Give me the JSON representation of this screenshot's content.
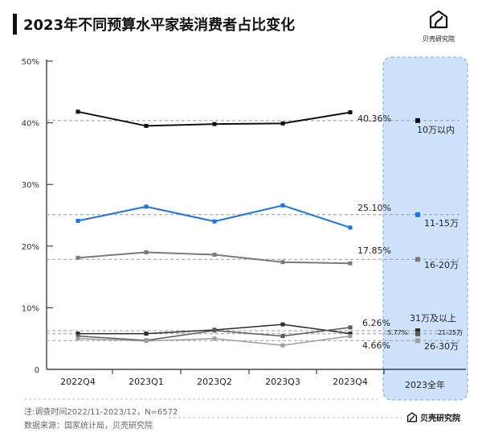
{
  "header": {
    "title": "2023年不同预算水平家装消费者占比变化",
    "brand": "贝壳研究院"
  },
  "footer": {
    "note": "注:调查时间2022/11-2023/12，N=6572",
    "source": "数据来源：国家统计局，贝壳研究院"
  },
  "colors": {
    "black": "#111111",
    "blue": "#1a73e8",
    "gray": "#7a7a7a",
    "dark": "#2b2b2b",
    "light": "#9e9e9e",
    "mid": "#5a5a5a",
    "highlight": "#cfe2fb"
  },
  "chart_data": {
    "type": "line",
    "title": "2023年不同预算水平家装消费者占比变化",
    "categories": [
      "2022Q4",
      "2023Q1",
      "2023Q2",
      "2023Q3",
      "2023Q4"
    ],
    "annual_label": "2023全年",
    "y_ticks": [
      "0",
      "10%",
      "20%",
      "30%",
      "40%",
      "50%"
    ],
    "ylim": [
      0,
      50
    ],
    "series": [
      {
        "name": "10万以内",
        "values": [
          41.8,
          39.5,
          39.8,
          39.9,
          41.7
        ],
        "annual": 40.36,
        "annual_label": "40.36%",
        "color_key": "black",
        "width": 2
      },
      {
        "name": "11-15万",
        "values": [
          24.1,
          26.4,
          24.0,
          26.6,
          23.0
        ],
        "annual": 25.1,
        "annual_label": "25.10%",
        "color_key": "blue",
        "width": 2
      },
      {
        "name": "16-20万",
        "values": [
          18.1,
          19.0,
          18.6,
          17.4,
          17.2
        ],
        "annual": 17.85,
        "annual_label": "17.85%",
        "color_key": "gray",
        "width": 2
      },
      {
        "name": "31万及以上",
        "values": [
          5.8,
          5.8,
          6.4,
          7.3,
          5.8
        ],
        "annual": 6.26,
        "annual_label": "6.26%",
        "color_key": "dark",
        "width": 1.5
      },
      {
        "name": "21-25万",
        "values": [
          5.4,
          4.7,
          6.3,
          5.4,
          6.8
        ],
        "annual": 5.77,
        "annual_label": "5.77%",
        "color_key": "mid",
        "width": 1.5
      },
      {
        "name": "26-30万",
        "values": [
          5.0,
          4.6,
          5.0,
          3.9,
          5.4
        ],
        "annual": 4.66,
        "annual_label": "4.66%",
        "color_key": "light",
        "width": 1.5
      }
    ],
    "grid": false,
    "reference_lines": true
  }
}
